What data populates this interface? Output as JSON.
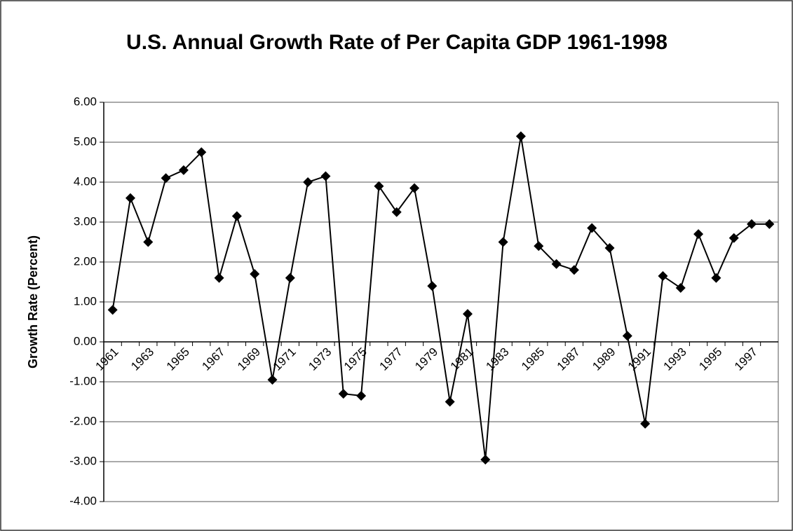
{
  "chart_data": {
    "type": "line",
    "title": "U.S. Annual Growth Rate of Per Capita GDP 1961-1998",
    "y_label": "Growth Rate (Percent)",
    "categories": [
      "1961",
      null,
      "1963",
      null,
      "1965",
      null,
      "1967",
      null,
      "1969",
      null,
      "1971",
      null,
      "1973",
      null,
      "1975",
      null,
      "1977",
      null,
      "1979",
      null,
      "1981",
      null,
      "1983",
      null,
      "1985",
      null,
      "1987",
      null,
      "1989",
      null,
      "1991",
      null,
      "1993",
      null,
      "1995",
      null,
      "1997",
      null
    ],
    "series": [
      {
        "color": "#000000",
        "values": [
          0.8,
          3.6,
          2.5,
          4.1,
          4.3,
          4.75,
          1.6,
          3.15,
          1.7,
          -0.95,
          1.6,
          4.0,
          4.15,
          -1.3,
          -1.35,
          3.9,
          3.25,
          3.85,
          1.4,
          -1.5,
          0.7,
          -2.95,
          2.5,
          5.15,
          2.4,
          1.95,
          1.8,
          2.85,
          2.35,
          0.15,
          -2.05,
          1.65,
          1.35,
          2.7,
          1.6,
          2.6,
          2.95,
          2.95
        ]
      }
    ],
    "ylim": [
      -4,
      6
    ],
    "yticks": [
      {
        "value": -4,
        "label": "-4.00"
      },
      {
        "value": -3,
        "label": "-3.00"
      },
      {
        "value": -2,
        "label": "-2.00"
      },
      {
        "value": -1,
        "label": "-1.00"
      },
      {
        "value": 0,
        "label": "0.00"
      },
      {
        "value": 1,
        "label": "1.00"
      },
      {
        "value": 2,
        "label": "2.00"
      },
      {
        "value": 3,
        "label": "3.00"
      },
      {
        "value": 4,
        "label": "4.00"
      },
      {
        "value": 5,
        "label": "5.00"
      },
      {
        "value": 6,
        "label": "6.00"
      }
    ],
    "grid": true
  }
}
